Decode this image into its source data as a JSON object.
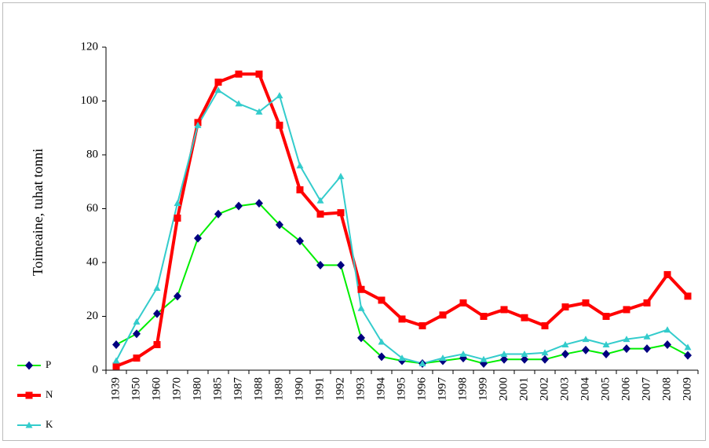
{
  "chart_data": {
    "type": "line",
    "y_label": "Toimeaine, tuhat tonni",
    "categories": [
      "1939",
      "1950",
      "1960",
      "1970",
      "1980",
      "1985",
      "1987",
      "1988",
      "1989",
      "1990",
      "1991",
      "1992",
      "1993",
      "1994",
      "1995",
      "1996",
      "1997",
      "1998",
      "1999",
      "2000",
      "2001",
      "2002",
      "2003",
      "2004",
      "2005",
      "2006",
      "2007",
      "2008",
      "2009"
    ],
    "series": [
      {
        "name": "P",
        "color": "#00ee00",
        "marker": "diamond",
        "marker_color": "#000080",
        "values": [
          9.5,
          13.5,
          21,
          27.5,
          49,
          58,
          61,
          62,
          54,
          48,
          39,
          39,
          12,
          5,
          3.5,
          2.5,
          3.5,
          4.5,
          2.5,
          4,
          4,
          4,
          6,
          7.5,
          6,
          8,
          8,
          9.5,
          5.5
        ]
      },
      {
        "name": "N",
        "color": "#ff0000",
        "marker": "square",
        "marker_color": "#ff0000",
        "values": [
          1.5,
          4.5,
          9.5,
          56.5,
          92,
          107,
          110,
          110,
          91,
          67,
          58,
          58.5,
          30,
          26,
          19,
          16.5,
          20.5,
          25,
          20,
          22.5,
          19.5,
          16.5,
          23.5,
          25,
          20,
          22.5,
          25,
          35.5,
          27.5
        ]
      },
      {
        "name": "K",
        "color": "#33cccc",
        "marker": "triangle",
        "marker_color": "#33cccc",
        "values": [
          3.5,
          18,
          30.5,
          62,
          91,
          104,
          99,
          96,
          102,
          76,
          63,
          72,
          23,
          10.5,
          4.5,
          2.5,
          4.5,
          6,
          4,
          6,
          6,
          6.5,
          9.5,
          11.5,
          9.5,
          11.5,
          12.5,
          15,
          8.5
        ]
      }
    ],
    "ylim": [
      0,
      120
    ],
    "yticks": [
      0,
      20,
      40,
      60,
      80,
      100,
      120
    ],
    "grid": false
  }
}
